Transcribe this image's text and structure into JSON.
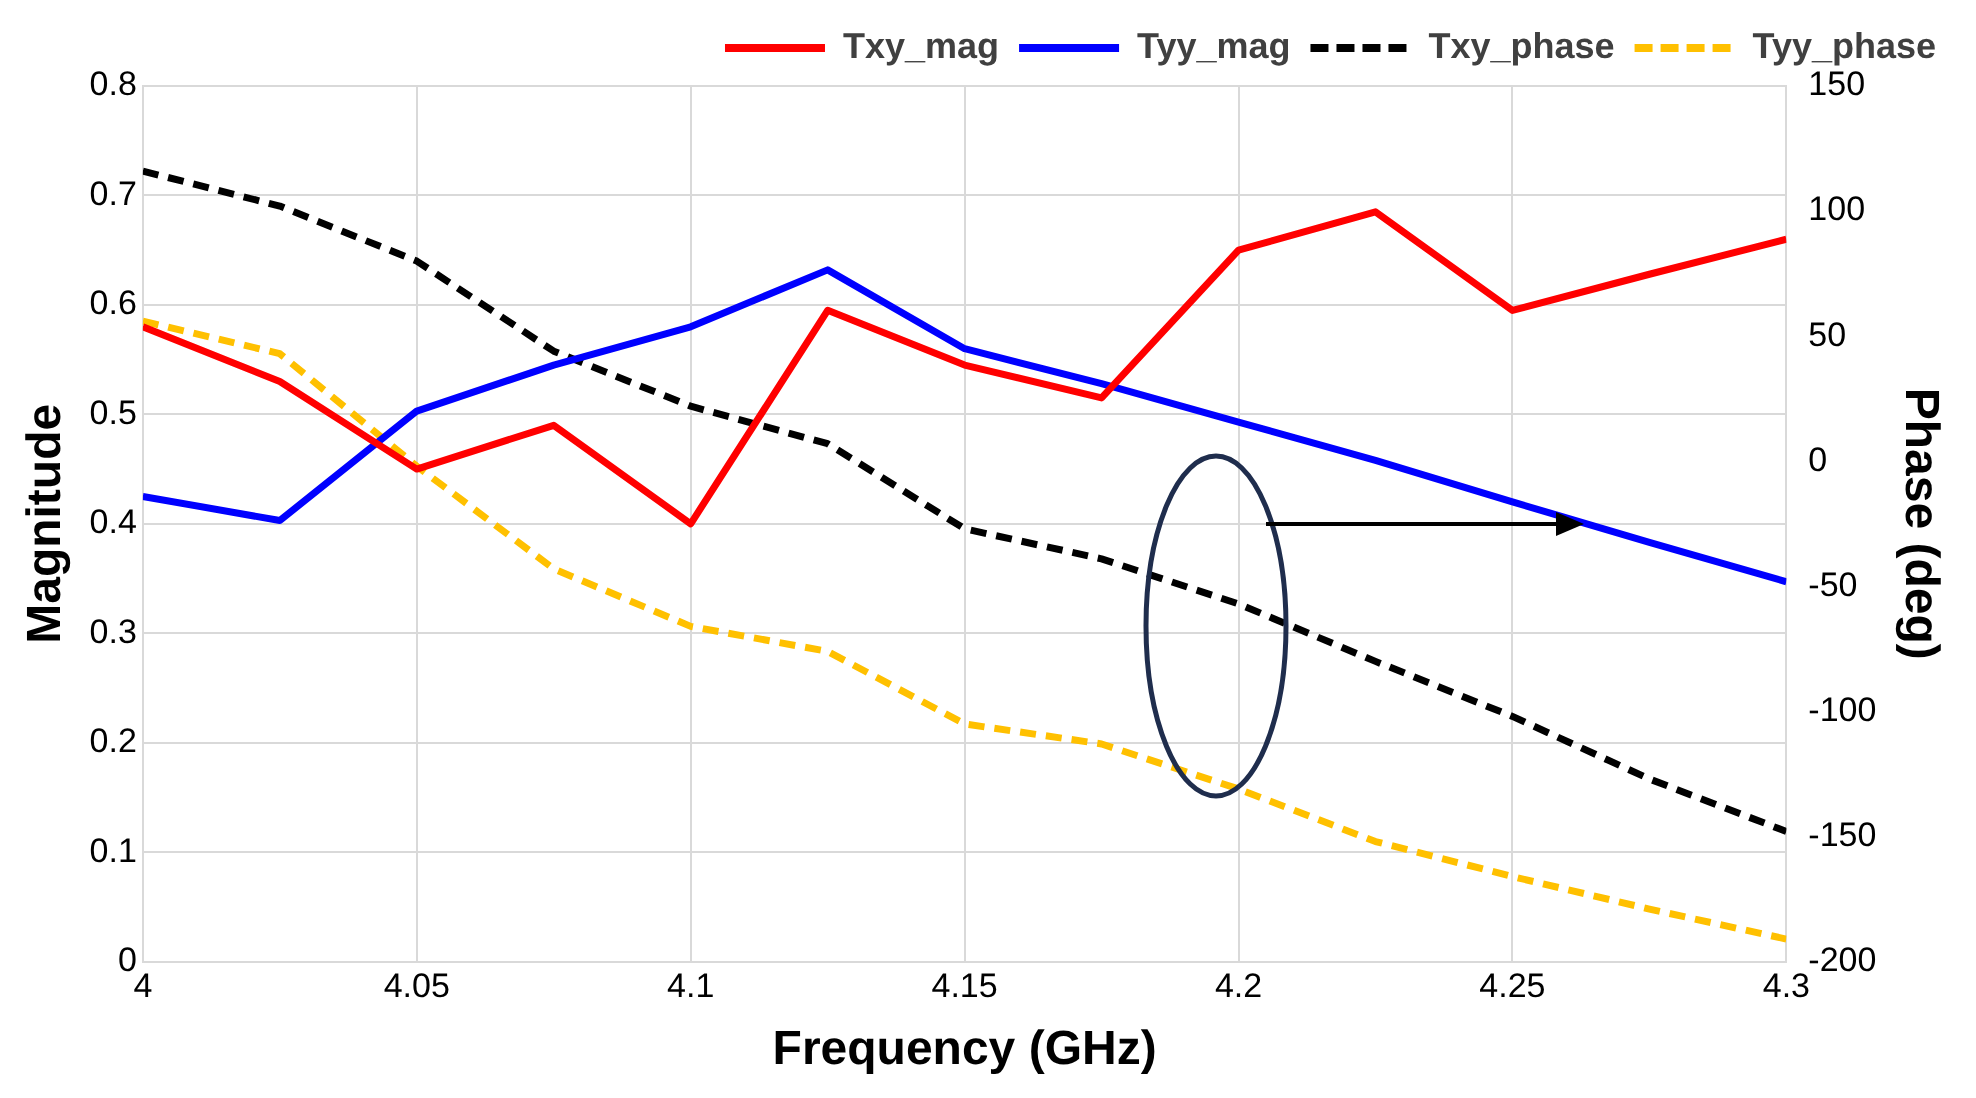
{
  "chart_data": {
    "type": "line",
    "xlabel": "Frequency (GHz)",
    "ylabel": "Magnitude",
    "y2label": "Phase (deg)",
    "x": [
      4,
      4.025,
      4.05,
      4.075,
      4.1,
      4.125,
      4.15,
      4.175,
      4.2,
      4.225,
      4.25,
      4.275,
      4.3
    ],
    "xlim": [
      4,
      4.3
    ],
    "xticks": [
      4,
      4.05,
      4.1,
      4.15,
      4.2,
      4.25,
      4.3
    ],
    "ylim": [
      0,
      0.8
    ],
    "yticks": [
      0,
      0.1,
      0.2,
      0.3,
      0.4,
      0.5,
      0.6,
      0.7,
      0.8
    ],
    "y2lim": [
      -200,
      150
    ],
    "y2ticks": [
      -200,
      -150,
      -100,
      -50,
      0,
      50,
      100,
      150
    ],
    "grid": true,
    "legend": "top right",
    "marker": "none",
    "series": [
      {
        "name": "Txy_mag",
        "color": "#ff0000",
        "line_style": "solid",
        "values": [
          0.58,
          0.53,
          0.45,
          0.49,
          0.4,
          0.595,
          0.545,
          0.515,
          0.65,
          0.685,
          0.595,
          0.628,
          0.66
        ]
      },
      {
        "name": "Tyy_mag",
        "color": "#0000ff",
        "line_style": "solid",
        "values": [
          0.425,
          0.403,
          0.503,
          0.545,
          0.58,
          0.632,
          0.56,
          0.528,
          0.493,
          0.458,
          0.42,
          0.383,
          0.347
        ]
      },
      {
        "name": "Txy_phase",
        "color": "#000000",
        "line_style": "dashed",
        "axis": "y2",
        "values": [
          116,
          102,
          80,
          44,
          22,
          7,
          -27,
          -39,
          -57,
          -80,
          -102,
          -127,
          -148
        ]
      },
      {
        "name": "Tyy_phase",
        "color": "#ffc000",
        "line_style": "dashed",
        "axis": "y2",
        "values": [
          56,
          43,
          -2,
          -43,
          -66,
          -76,
          -105,
          -113,
          -131,
          -152,
          -166,
          -179,
          -191
        ]
      }
    ]
  }
}
